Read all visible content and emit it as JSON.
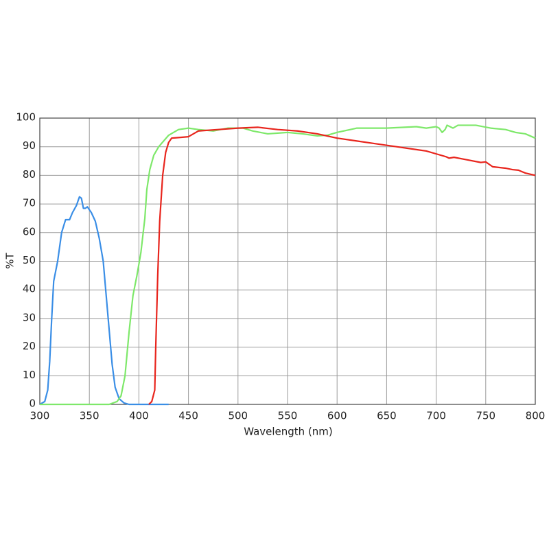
{
  "chart_data": {
    "type": "line",
    "x_label": "Wavelength (nm)",
    "y_label": "%T",
    "xlim": [
      300,
      800
    ],
    "xticks": [
      300,
      350,
      400,
      450,
      500,
      550,
      600,
      650,
      700,
      750,
      800
    ],
    "ylim": [
      0,
      100
    ],
    "yticks": [
      0,
      10,
      20,
      30,
      40,
      50,
      60,
      70,
      80,
      90,
      100
    ],
    "grid": true,
    "series": [
      {
        "color": "#3a8ee6",
        "x": [
          300,
          305,
          308,
          310,
          312,
          314,
          318,
          322,
          326,
          330,
          333,
          337,
          340,
          342,
          344,
          346,
          348,
          352,
          356,
          360,
          364,
          367,
          370,
          373,
          376,
          380,
          385,
          390,
          400,
          430
        ],
        "values": [
          0,
          1,
          5,
          15,
          30,
          43,
          50,
          60,
          64.5,
          64.5,
          67,
          69.5,
          72.5,
          72,
          68.5,
          68.5,
          69,
          67,
          64,
          58,
          50,
          38,
          26,
          14,
          6,
          2,
          0.5,
          0,
          0,
          0
        ]
      },
      {
        "color": "#7ee86a",
        "x": [
          300,
          370,
          378,
          382,
          386,
          390,
          394,
          398,
          402,
          406,
          408,
          411,
          415,
          420,
          430,
          440,
          450,
          460,
          475,
          490,
          505,
          515,
          530,
          550,
          565,
          580,
          590,
          600,
          620,
          650,
          680,
          690,
          700,
          703,
          706,
          709,
          711,
          714,
          717,
          722,
          740,
          755,
          770,
          780,
          790,
          800
        ],
        "values": [
          0,
          0,
          1,
          3,
          10,
          25,
          38,
          45,
          53,
          65,
          75,
          82,
          87,
          90,
          94,
          96,
          96.5,
          96,
          95.5,
          96.5,
          96.5,
          95.5,
          94.5,
          95,
          94.5,
          93.8,
          94,
          95,
          96.5,
          96.5,
          97,
          96.5,
          97,
          96.5,
          95,
          96,
          97.5,
          97,
          96.5,
          97.5,
          97.5,
          96.5,
          96,
          95,
          94.5,
          93
        ]
      },
      {
        "color": "#e8251d",
        "x": [
          410,
          413,
          416,
          417,
          419,
          421,
          424,
          427,
          430,
          433,
          440,
          450,
          455,
          460,
          480,
          500,
          520,
          540,
          560,
          580,
          600,
          620,
          640,
          660,
          680,
          690,
          700,
          710,
          713,
          718,
          730,
          745,
          750,
          757,
          770,
          777,
          783,
          790,
          800
        ],
        "values": [
          0,
          1,
          5,
          20,
          45,
          64,
          80,
          88,
          91.5,
          93,
          93.2,
          93.5,
          94.5,
          95.5,
          96,
          96.5,
          96.8,
          96,
          95.5,
          94.5,
          93,
          92,
          91,
          90,
          89,
          88.5,
          87.5,
          86.5,
          86,
          86.3,
          85.5,
          84.5,
          84.7,
          83,
          82.5,
          82,
          81.8,
          80.8,
          80
        ]
      }
    ]
  }
}
